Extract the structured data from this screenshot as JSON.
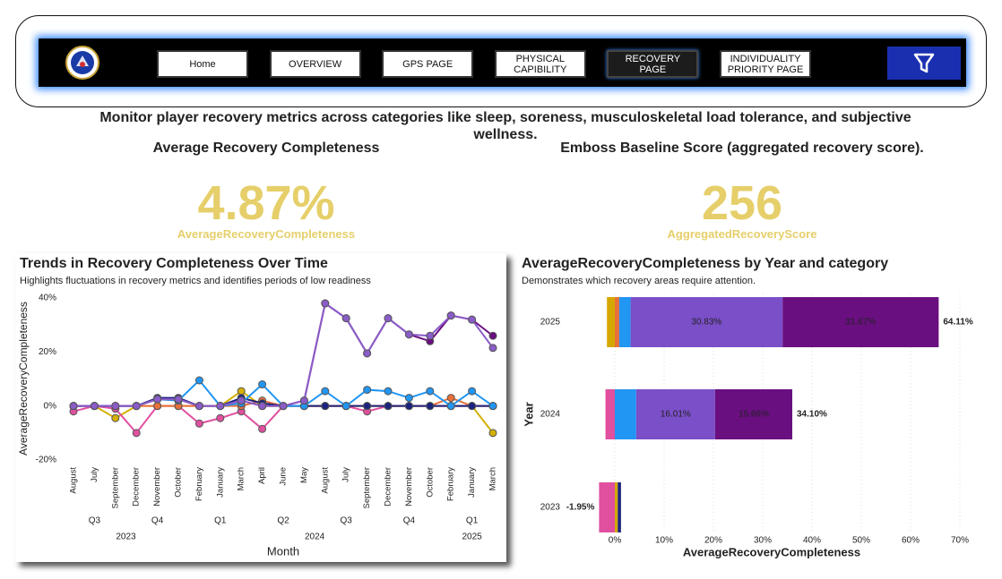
{
  "nav": {
    "buttons": [
      "Home",
      "OVERVIEW",
      "GPS PAGE",
      "PHYSICAL CAPIBILITY",
      "RECOVERY PAGE",
      "INDIVIDUALITY PRIORITY PAGE"
    ],
    "active": 4
  },
  "description": "Monitor player recovery metrics across categories like sleep, soreness, musculoskeletal load tolerance, and subjective wellness.",
  "kpis": [
    {
      "title": "Average Recovery Completeness",
      "value": 4.87,
      "value_label": "4.87%",
      "label": "AverageRecoveryCompleteness"
    },
    {
      "title": "Emboss Baseline Score (aggregated recovery score).",
      "value": 256,
      "label": "AggregatedRecoveryScore"
    }
  ],
  "chart_data": [
    {
      "type": "line",
      "title": "Trends in Recovery Completeness Over Time",
      "subtitle": "Highlights fluctuations in recovery metrics and identifies periods of low readiness",
      "x_label": "Month",
      "y_label": "AverageRecoveryCompleteness",
      "categories": [
        "August",
        "July",
        "September",
        "December",
        "November",
        "October",
        "February",
        "January",
        "March",
        "April",
        "June",
        "May",
        "August",
        "July",
        "September",
        "December",
        "November",
        "October",
        "February",
        "January",
        "March"
      ],
      "quarters": [
        "Q3",
        null,
        null,
        "Q4",
        null,
        null,
        "Q1",
        null,
        null,
        "Q2",
        null,
        null,
        "Q3",
        null,
        null,
        "Q4",
        null,
        null,
        "Q1",
        null,
        null
      ],
      "years": [
        "2023",
        null,
        null,
        null,
        null,
        null,
        "2024",
        null,
        null,
        null,
        null,
        null,
        null,
        null,
        null,
        null,
        null,
        null,
        "2025",
        null,
        null
      ],
      "ylim": [
        -20,
        40
      ],
      "yticks": [
        {
          "value": -20,
          "label": "-20%"
        },
        {
          "value": 0,
          "label": "0%"
        },
        {
          "value": 20,
          "label": "20%"
        },
        {
          "value": 40,
          "label": "40%"
        }
      ],
      "markers": true,
      "series": [
        {
          "color": "#d4b000",
          "values": [
            0,
            0,
            -4.5,
            0,
            0,
            0,
            0,
            0,
            5.5,
            0,
            0,
            0,
            0,
            0,
            0,
            0,
            0,
            0,
            0,
            0,
            -10
          ]
        },
        {
          "color": "#e0509f",
          "values": [
            -2,
            0,
            -1,
            -10,
            0,
            0,
            -6.5,
            -4.5,
            -2,
            -8.5,
            0,
            0,
            0,
            0,
            -2,
            0,
            0,
            0,
            0,
            0,
            0
          ]
        },
        {
          "color": "#e8703a",
          "values": [
            0,
            0,
            0,
            0,
            0,
            0,
            0,
            0,
            0,
            2,
            0,
            0,
            0,
            0,
            0,
            0,
            0,
            0,
            3,
            0,
            0
          ]
        },
        {
          "color": "#1a237e",
          "values": [
            0,
            0,
            0,
            0,
            3,
            3,
            0,
            0,
            3,
            1,
            0,
            0,
            0,
            0,
            0,
            0,
            0,
            0,
            0,
            0,
            0
          ]
        },
        {
          "color": "#2196f3",
          "values": [
            0,
            0,
            0,
            0,
            2.5,
            2,
            9.5,
            0,
            1,
            8,
            0,
            0,
            5.5,
            0,
            6,
            5.5,
            3,
            5.5,
            0,
            5.5,
            0
          ]
        },
        {
          "color": "#6a0f80",
          "values": [
            0,
            0,
            0,
            0,
            2.5,
            2.5,
            0,
            0,
            2,
            0,
            0,
            2,
            38,
            32.5,
            19.5,
            32.5,
            26.5,
            24,
            33.5,
            32,
            26
          ]
        },
        {
          "color": "#8a5cc8",
          "values": [
            0,
            0,
            0,
            0,
            2.5,
            2.5,
            0,
            0,
            2,
            0,
            0,
            2,
            38,
            32.5,
            19.5,
            32.5,
            26.5,
            26,
            33.5,
            32,
            21.5
          ]
        }
      ]
    },
    {
      "type": "bar",
      "orientation": "horizontal",
      "stacked": true,
      "title": "AverageRecoveryCompleteness by Year and category",
      "subtitle": "Demonstrates which recovery areas require attention.",
      "x_label": "AverageRecoveryCompleteness",
      "y_label": "Year",
      "categories": [
        "2025",
        "2024",
        "2023"
      ],
      "xlim": [
        -3,
        75
      ],
      "xticks": [
        {
          "value": 0,
          "label": "0%"
        },
        {
          "value": 10,
          "label": "10%"
        },
        {
          "value": 20,
          "label": "20%"
        },
        {
          "value": 30,
          "label": "30%"
        },
        {
          "value": 40,
          "label": "40%"
        },
        {
          "value": 50,
          "label": "50%"
        },
        {
          "value": 60,
          "label": "60%"
        },
        {
          "value": 70,
          "label": "70%"
        }
      ],
      "grid": true,
      "series": [
        {
          "color": "#d4a800",
          "values": [
            -1.6,
            null,
            0.6
          ]
        },
        {
          "color": "#e8703a",
          "values": [
            0.9,
            null,
            null
          ]
        },
        {
          "color": "#e0509f",
          "values": [
            null,
            -1.9,
            -3.2
          ]
        },
        {
          "color": "#1a237e",
          "values": [
            null,
            null,
            0.65
          ]
        },
        {
          "color": "#2196f3",
          "values": [
            2.3,
            4.33,
            null
          ]
        },
        {
          "color": "#7a4fc8",
          "values": [
            30.83,
            16.01,
            null
          ],
          "value_labels": [
            "30.83%",
            "16.01%",
            null
          ]
        },
        {
          "color": "#6a0f80",
          "values": [
            31.67,
            15.66,
            null
          ],
          "value_labels": [
            "31.67%",
            "15.66%",
            null
          ]
        }
      ],
      "totals": [
        64.11,
        34.1,
        -1.95
      ],
      "total_labels": [
        "64.11%",
        "34.10%",
        "-1.95%"
      ]
    }
  ]
}
